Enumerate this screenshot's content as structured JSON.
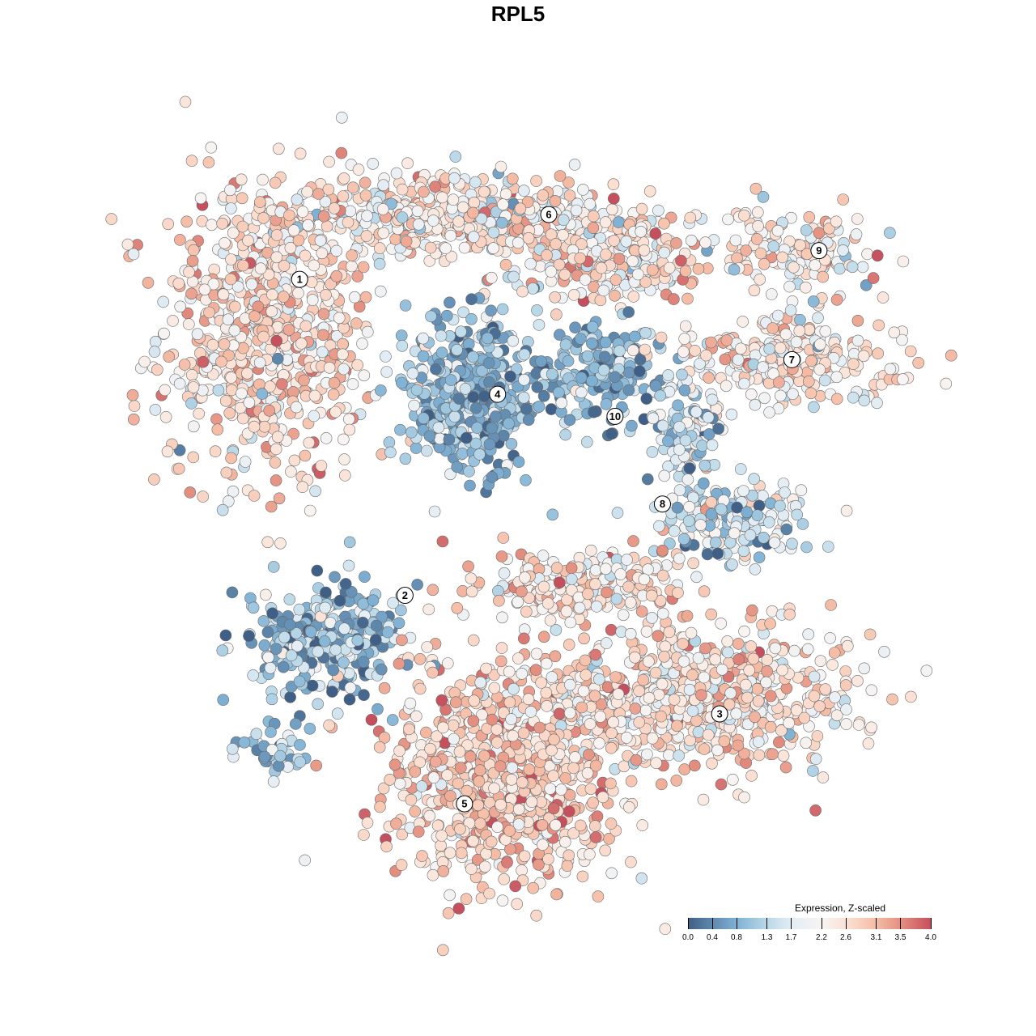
{
  "chart_data": {
    "type": "scatter",
    "title": "RPL5",
    "xlabel": "",
    "ylabel": "",
    "grid": false,
    "xlim": [
      0,
      100
    ],
    "ylim": [
      0,
      100
    ],
    "legend": {
      "title": "Expression, Z-scaled",
      "placement": "bottom-right",
      "ticks": [
        "0.0",
        "0.4",
        "0.8",
        "1.3",
        "1.7",
        "2.2",
        "2.6",
        "3.1",
        "3.5",
        "4.0"
      ],
      "tick_values": [
        0.0,
        0.4,
        0.8,
        1.3,
        1.7,
        2.2,
        2.6,
        3.1,
        3.5,
        4.0
      ],
      "range": [
        0,
        4
      ],
      "colors": [
        {
          "v": 0.0,
          "c": "#3f5f86"
        },
        {
          "v": 0.8,
          "c": "#7fb1d4"
        },
        {
          "v": 1.3,
          "c": "#b9d8e8"
        },
        {
          "v": 1.7,
          "c": "#e3edf4"
        },
        {
          "v": 2.2,
          "c": "#f7f4f3"
        },
        {
          "v": 2.6,
          "c": "#fbe1d4"
        },
        {
          "v": 3.1,
          "c": "#f5bca5"
        },
        {
          "v": 3.5,
          "c": "#e48f80"
        },
        {
          "v": 4.0,
          "c": "#c64f5e"
        }
      ]
    },
    "clusters": [
      {
        "label": "1",
        "label_pos": [
          18.3,
          82.4
        ],
        "blobs": [
          {
            "x": 14.0,
            "y": 75.3,
            "sx": 9,
            "sy": 13,
            "n": 700
          }
        ],
        "mean": 2.6,
        "sd": 0.55
      },
      {
        "label": "6",
        "label_pos": [
          51.4,
          91.2
        ],
        "blobs": [
          {
            "x": 38,
            "y": 91,
            "sx": 14,
            "sy": 3.5,
            "n": 500
          },
          {
            "x": 60,
            "y": 86,
            "sx": 8,
            "sy": 4,
            "n": 250
          }
        ],
        "mean": 2.4,
        "sd": 0.6
      },
      {
        "label": "4",
        "label_pos": [
          44.6,
          66.8
        ],
        "blobs": [
          {
            "x": 41.4,
            "y": 66.5,
            "sx": 5.5,
            "sy": 6.5,
            "n": 500
          }
        ],
        "mean": 0.9,
        "sd": 0.55
      },
      {
        "label": "10",
        "label_pos": [
          60.2,
          63.8
        ],
        "blobs": [
          {
            "x": 58.1,
            "y": 69.8,
            "sx": 5.5,
            "sy": 4,
            "n": 160
          }
        ],
        "mean": 0.8,
        "sd": 0.5
      },
      {
        "label": "9",
        "label_pos": [
          87.3,
          86.3
        ],
        "blobs": [
          {
            "x": 83.9,
            "y": 86.3,
            "sx": 7,
            "sy": 3.5,
            "n": 150
          }
        ],
        "mean": 2.3,
        "sd": 0.6
      },
      {
        "label": "7",
        "label_pos": [
          83.7,
          71.5
        ],
        "blobs": [
          {
            "x": 83.9,
            "y": 71.4,
            "sx": 10,
            "sy": 3.5,
            "n": 250
          }
        ],
        "mean": 2.3,
        "sd": 0.55
      },
      {
        "label": "8",
        "label_pos": [
          66.5,
          51.9
        ],
        "blobs": [
          {
            "x": 75.3,
            "y": 50,
            "sx": 6,
            "sy": 3.5,
            "n": 180
          },
          {
            "x": 69.9,
            "y": 62.1,
            "sx": 3,
            "sy": 5,
            "n": 100
          }
        ],
        "mean": 1.5,
        "sd": 0.65
      },
      {
        "label": "2",
        "label_pos": [
          32.3,
          39.5
        ],
        "blobs": [
          {
            "x": 21.5,
            "y": 33.5,
            "sx": 6,
            "sy": 5,
            "n": 300
          },
          {
            "x": 15.1,
            "y": 18.7,
            "sx": 3,
            "sy": 2,
            "n": 50
          }
        ],
        "mean": 1.0,
        "sd": 0.6
      },
      {
        "label": "3",
        "label_pos": [
          74.1,
          23.4
        ],
        "blobs": [
          {
            "x": 69.9,
            "y": 25.8,
            "sx": 14,
            "sy": 6,
            "n": 700
          },
          {
            "x": 55.9,
            "y": 41.2,
            "sx": 9,
            "sy": 3,
            "n": 220
          }
        ],
        "mean": 2.5,
        "sd": 0.6
      },
      {
        "label": "5",
        "label_pos": [
          40.2,
          11.2
        ],
        "blobs": [
          {
            "x": 45.2,
            "y": 14.8,
            "sx": 10,
            "sy": 9,
            "n": 700
          }
        ],
        "mean": 2.8,
        "sd": 0.5
      }
    ]
  }
}
